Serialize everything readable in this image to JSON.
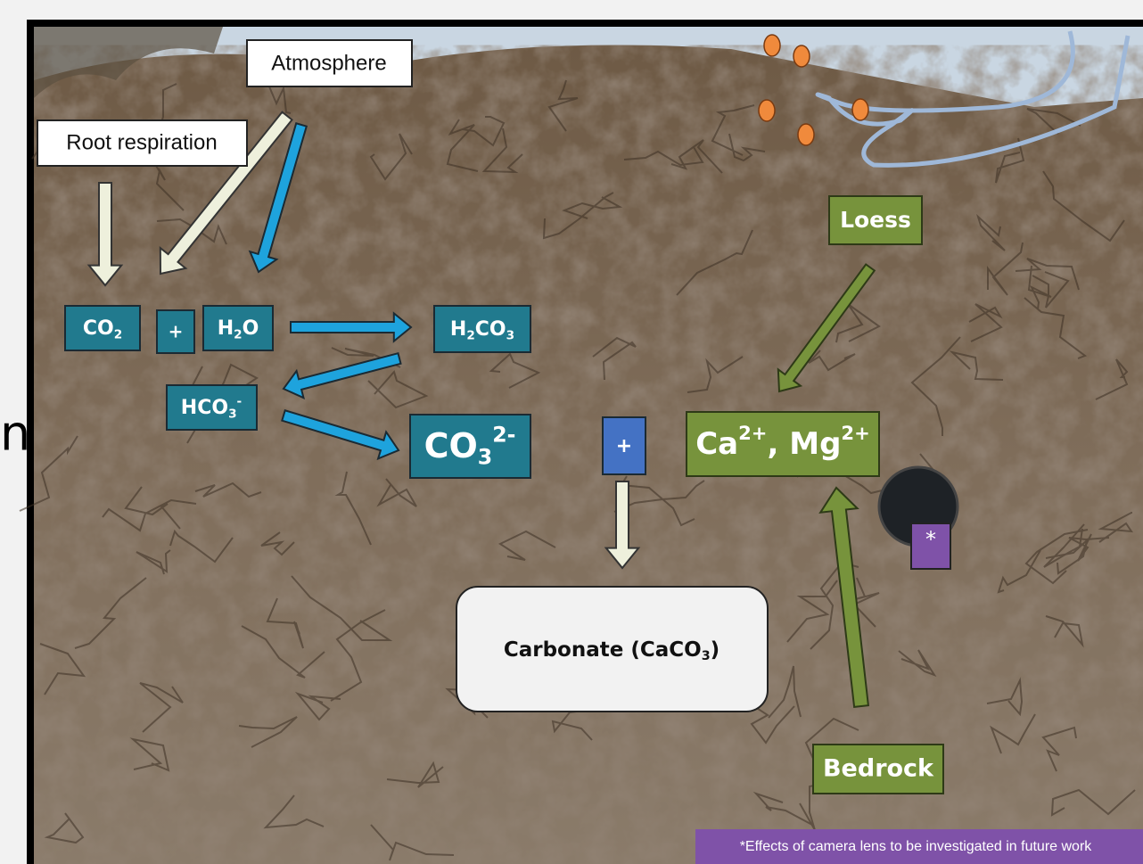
{
  "labels": {
    "atmosphere": "Atmosphere",
    "root_respiration": "Root respiration",
    "loess": "Loess",
    "bedrock": "Bedrock",
    "plus_1": "+",
    "plus_2": "+",
    "asterisk": "*",
    "footnote": "*Effects of camera lens to be investigated in future work",
    "edge_text": "n"
  },
  "formulas": {
    "co2": [
      {
        "t": "CO"
      },
      {
        "sub": "2"
      }
    ],
    "h2o": [
      {
        "t": "H"
      },
      {
        "sub": "2"
      },
      {
        "t": "O"
      }
    ],
    "h2co3": [
      {
        "t": "H"
      },
      {
        "sub": "2"
      },
      {
        "t": "CO"
      },
      {
        "sub": "3"
      }
    ],
    "hco3": [
      {
        "t": "HCO"
      },
      {
        "sub": "3"
      },
      {
        "sup": "-"
      }
    ],
    "co3": [
      {
        "t": "CO"
      },
      {
        "sub": "3"
      },
      {
        "sup": "2-"
      }
    ],
    "ca_mg": [
      {
        "t": "Ca"
      },
      {
        "sup": "2+"
      },
      {
        "t": ", Mg"
      },
      {
        "sup": "2+"
      }
    ],
    "carbonate": [
      {
        "t": "Carbonate (CaCO"
      },
      {
        "sub": "3"
      },
      {
        "t": ")"
      }
    ]
  }
}
